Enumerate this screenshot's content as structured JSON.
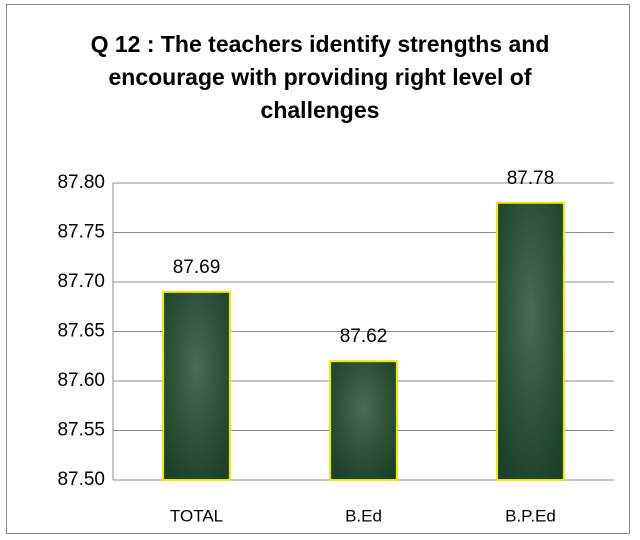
{
  "chart_data": {
    "type": "bar",
    "title": "Q 12 : The teachers identify strengths and encourage with providing right level of challenges",
    "categories": [
      "TOTAL",
      "B.Ed",
      "B.P.Ed"
    ],
    "values": [
      87.69,
      87.62,
      87.78
    ],
    "color": "#1f4d2f",
    "edgecolor": "#f2e600",
    "ylim": [
      87.5,
      87.8
    ],
    "yticks": [
      {
        "value": 87.5,
        "label": "87.50"
      },
      87.55,
      {
        "value": 87.6,
        "label": "87.60"
      },
      87.65,
      {
        "value": 87.7,
        "label": "87.70"
      },
      87.75,
      {
        "value": 87.8,
        "label": "87.80"
      }
    ],
    "grid": true
  }
}
